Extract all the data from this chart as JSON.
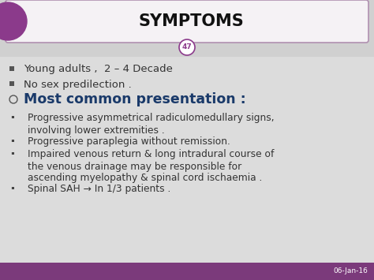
{
  "title": "SYMPTOMS",
  "slide_number": "47",
  "fig_bg": "#d0d0d0",
  "content_bg": "#dcdcdc",
  "header_bg": "#f5f2f5",
  "header_border": "#b090b0",
  "header_text_color": "#111111",
  "purple_accent": "#8B3A8B",
  "footer_bg": "#7B3A7B",
  "footer_text": "06-Jan-16",
  "footer_text_color": "#ffffff",
  "text_color_main": "#333333",
  "text_color_highlight": "#1a3a6a",
  "lines": [
    {
      "type": "square_bullet",
      "text": "Young adults ,  2 – 4 Decade"
    },
    {
      "type": "square_bullet",
      "text": "No sex predilection ."
    },
    {
      "type": "circle_bullet",
      "text": "Most common presentation :",
      "bold": true,
      "color": "#1a3a6a"
    },
    {
      "type": "dot_bullet",
      "text": "Progressive asymmetrical radiculomedullary signs,"
    },
    {
      "type": "continuation",
      "text": "involving lower extremities ."
    },
    {
      "type": "dot_bullet",
      "text": "Progressive paraplegia without remission."
    },
    {
      "type": "dot_bullet",
      "text": "Impaired venous return & long intradural course of"
    },
    {
      "type": "continuation",
      "text": "the venous drainage may be responsible for"
    },
    {
      "type": "continuation",
      "text": "ascending myelopathy & spinal cord ischaemia ."
    },
    {
      "type": "dot_bullet",
      "text": "Spinal SAH → In 1/3 patients ."
    }
  ]
}
